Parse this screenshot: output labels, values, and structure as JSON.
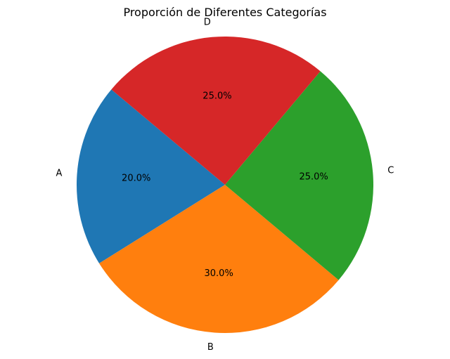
{
  "chart_data": {
    "type": "pie",
    "title": "Proporción de Diferentes Categorías",
    "categories": [
      "A",
      "B",
      "C",
      "D"
    ],
    "values": [
      20,
      30,
      25,
      25
    ],
    "percent_labels": [
      "20.0%",
      "30.0%",
      "25.0%",
      "25.0%"
    ],
    "colors": [
      "#1f77b4",
      "#ff7f0e",
      "#2ca02c",
      "#d62728"
    ],
    "start_angle_deg": 140,
    "direction": "counterclockwise"
  }
}
